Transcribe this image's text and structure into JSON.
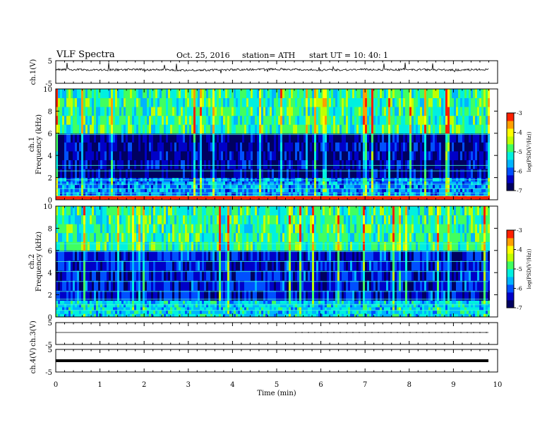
{
  "header": {
    "title": "VLF  Spectra",
    "date": "Oct. 25, 2016",
    "station": "station= ATH",
    "start": "start  UT  =   10: 40: 1"
  },
  "colors": {
    "palette": [
      "#000060",
      "#0000c8",
      "#0050ff",
      "#00b4ff",
      "#00f0e0",
      "#40ff60",
      "#c0ff00",
      "#ffff00",
      "#ffa000",
      "#ff2000",
      "#ffffff"
    ]
  },
  "chart_data": [
    {
      "type": "line",
      "panel": "ch1-waveform",
      "ylabel": "ch.1(V)",
      "ylim": [
        -5,
        5
      ],
      "yticks": [
        "5",
        "-5"
      ],
      "x": [
        0,
        1,
        2,
        3,
        4,
        5,
        6,
        7,
        8,
        9,
        9.8
      ],
      "values": [
        1.2,
        0.9,
        1.1,
        0.8,
        1.0,
        1.3,
        0.9,
        1.1,
        1.0,
        0.9,
        1.1
      ]
    },
    {
      "type": "heatmap",
      "panel": "ch1-spectrogram",
      "ylabel": "ch.1\nFrequency  (kHz)",
      "ylabel_lines": [
        "ch.1",
        "Frequency  (kHz)"
      ],
      "ylim": [
        0,
        10
      ],
      "yticks": [
        "0",
        "2",
        "4",
        "6",
        "8",
        "10"
      ],
      "colorbar": {
        "label": "log(PSD(V²/Hz))",
        "ticks": [
          "-3",
          "-4",
          "-5",
          "-6",
          "-7"
        ],
        "range": [
          -7,
          -3
        ]
      },
      "bands": [
        {
          "from": 0,
          "to": 0.4,
          "level": -3.2
        },
        {
          "from": 0.4,
          "to": 2.0,
          "level": -5.8
        },
        {
          "from": 2.0,
          "to": 6.0,
          "level": -6.6
        },
        {
          "from": 6.0,
          "to": 10,
          "level": -5.0
        }
      ]
    },
    {
      "type": "heatmap",
      "panel": "ch2-spectrogram",
      "ylabel": "ch.2\nFrequency  (kHz)",
      "ylabel_lines": [
        "ch.2",
        "Frequency  (kHz)"
      ],
      "ylim": [
        0,
        10
      ],
      "yticks": [
        "0",
        "2",
        "4",
        "6",
        "8",
        "10"
      ],
      "colorbar": {
        "label": "log(PSD(V²/Hz))",
        "ticks": [
          "-3",
          "-4",
          "-5",
          "-6",
          "-7"
        ],
        "range": [
          -7,
          -3
        ]
      },
      "bands": [
        {
          "from": 0,
          "to": 1.5,
          "level": -5.4
        },
        {
          "from": 1.5,
          "to": 6.0,
          "level": -6.3
        },
        {
          "from": 6.0,
          "to": 10,
          "level": -5.0
        }
      ]
    },
    {
      "type": "line",
      "panel": "ch3-waveform",
      "ylabel": "ch.3(V)",
      "ylim": [
        -5,
        5
      ],
      "yticks": [
        "5",
        "-5"
      ],
      "x": [
        0,
        9.8
      ],
      "values": [
        0,
        0
      ]
    },
    {
      "type": "line",
      "panel": "ch4-waveform",
      "ylabel": "ch.4(V)",
      "ylim": [
        -5,
        5
      ],
      "yticks": [
        "5",
        "-5"
      ],
      "x": [
        0,
        9.8
      ],
      "values": [
        0,
        0
      ]
    }
  ],
  "xaxis": {
    "label": "Time  (min)",
    "xlim": [
      0,
      10
    ],
    "ticks": [
      "0",
      "1",
      "2",
      "3",
      "4",
      "5",
      "6",
      "7",
      "8",
      "9",
      "10"
    ]
  }
}
